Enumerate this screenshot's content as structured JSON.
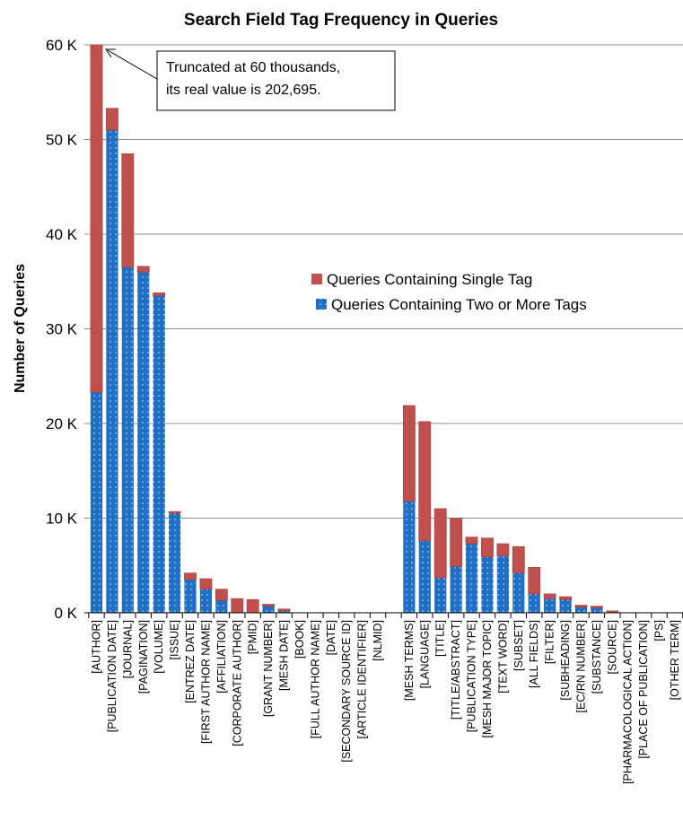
{
  "chart_data": {
    "type": "bar",
    "stacked": true,
    "title": "Search Field Tag Frequency in Queries",
    "ylabel": "Number of Queries",
    "ylim": [
      0,
      60000
    ],
    "yticks": [
      "0 K",
      "10 K",
      "20 K",
      "30 K",
      "40 K",
      "50 K",
      "60 K"
    ],
    "grid": true,
    "legend_position": "center-right",
    "categories": [
      "[AUTHOR]",
      "[PUBLICATION DATE]",
      "[JOURNAL]",
      "[PAGINATION]",
      "[VOLUME]",
      "[ISSUE]",
      "[ENTREZ DATE]",
      "[FIRST AUTHOR NAME]",
      "[AFFILIATION]",
      "[CORPORATE AUTHOR]",
      "[PMID]",
      "[GRANT NUMBER]",
      "[MESH DATE]",
      "[BOOK]",
      "[FULL AUTHOR NAME]",
      "[DATE]",
      "[SECONDARY SOURCE ID]",
      "[ARTICLE IDENTIFIER]",
      "[NLMID]",
      "",
      "[MESH TERMS]",
      "[LANGUAGE]",
      "[TITLE]",
      "[TITLE/ABSTRACT]",
      "[PUBLICATION TYPE]",
      "[MESH MAJOR TOPIC]",
      "[TEXT WORD]",
      "[SUBSET]",
      "[ALL FIELDS]",
      "[FILTER]",
      "[SUBHEADING]",
      "[EC/RN NUMBER]",
      "[SUBSTANCE]",
      "[SOURCE]",
      "[PHARMACOLOGICAL ACTION]",
      "[PLACE OF PUBLICATION]",
      "[PS]",
      "[OTHER TERM]"
    ],
    "series": [
      {
        "name": "Queries Containing Two or More Tags",
        "color": "#1f6fc5",
        "values": [
          23300,
          51000,
          36500,
          36000,
          33500,
          10500,
          3500,
          2500,
          1300,
          0,
          0,
          700,
          200,
          0,
          0,
          0,
          0,
          0,
          0,
          0,
          11800,
          7600,
          3700,
          4900,
          7300,
          5900,
          6000,
          4200,
          2000,
          1500,
          1400,
          600,
          500,
          0,
          0,
          0,
          0,
          0
        ]
      },
      {
        "name": "Queries Containing Single Tag",
        "color": "#c0504d",
        "values": [
          36700,
          2300,
          12000,
          600,
          300,
          200,
          700,
          1100,
          1200,
          1500,
          1400,
          200,
          200,
          0,
          0,
          0,
          0,
          0,
          0,
          0,
          10100,
          12600,
          7300,
          5100,
          700,
          2000,
          1300,
          2800,
          2800,
          500,
          300,
          200,
          200,
          200,
          0,
          0,
          0,
          0
        ]
      }
    ],
    "annotation": {
      "lines": [
        "Truncated at 60 thousands,",
        "its real value is 202,695."
      ]
    }
  }
}
